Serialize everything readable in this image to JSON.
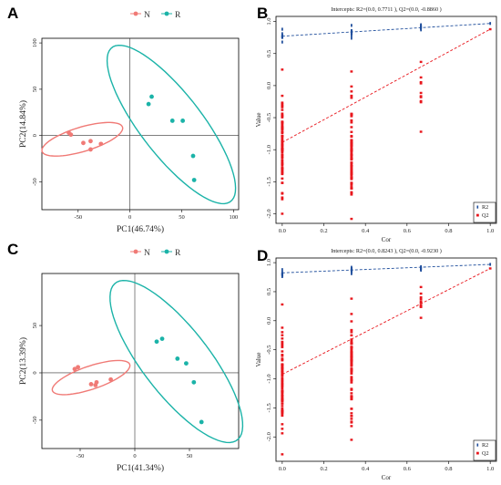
{
  "colors": {
    "N": "#f07a76",
    "R": "#1bb3a8",
    "R2": "#1f4e9c",
    "Q2": "#e8161c"
  },
  "chart_data": [
    {
      "panel": "A",
      "type": "scatter",
      "xlabel": "PC1(46.74%)",
      "ylabel": "PC2(14.84%)",
      "xlim": [
        -85,
        105
      ],
      "ylim": [
        -80,
        105
      ],
      "xticks": [
        "-50",
        "0",
        "50",
        "100"
      ],
      "xtick_values": [
        -50,
        0,
        50,
        100
      ],
      "yticks": [
        "-50",
        "0",
        "50",
        "100"
      ],
      "ytick_values": [
        -50,
        0,
        50,
        100
      ],
      "legend": [
        {
          "name": "N"
        },
        {
          "name": "R"
        }
      ],
      "series": [
        {
          "name": "N",
          "points": [
            [
              -59,
              3
            ],
            [
              -57,
              1
            ],
            [
              -45,
              -8
            ],
            [
              -38,
              -15
            ],
            [
              -38,
              -6
            ],
            [
              -28,
              -9
            ]
          ],
          "ellipse": {
            "cx": -46,
            "cy": -4,
            "rx": 41,
            "ry": 13,
            "angle_deg": 19
          }
        },
        {
          "name": "R",
          "points": [
            [
              18,
              34
            ],
            [
              21,
              42
            ],
            [
              41,
              16
            ],
            [
              51,
              16
            ],
            [
              61,
              -22
            ],
            [
              62,
              -48
            ]
          ],
          "ellipse": {
            "cx": 40,
            "cy": 12,
            "rx": 101,
            "ry": 31,
            "angle_deg": -56
          }
        }
      ]
    },
    {
      "panel": "B",
      "type": "scatter",
      "title": "Intercepts: R2=(0.0, 0.7711 ), Q2=(0.0, -0.8860 )",
      "xlabel": "Cor",
      "ylabel": "Value",
      "xlim": [
        -0.03,
        1.03
      ],
      "ylim": [
        -2.15,
        1.08
      ],
      "xticks": [
        "0.0",
        "0.2",
        "0.4",
        "0.6",
        "0.8",
        "1.0"
      ],
      "xtick_values": [
        0,
        0.2,
        0.4,
        0.6,
        0.8,
        1.0
      ],
      "yticks": [
        "-2.0",
        "-1.5",
        "-1.0",
        "-0.5",
        "0.0",
        "0.5",
        "1.0"
      ],
      "ytick_values": [
        -2,
        -1.5,
        -1,
        -0.5,
        0,
        0.5,
        1
      ],
      "legend": [
        {
          "name": "R2"
        },
        {
          "name": "Q2"
        }
      ],
      "legend_position": "bottom-right",
      "series": [
        {
          "name": "R2",
          "x_groups": [
            0.0,
            0.333,
            0.667,
            1.0
          ],
          "y_ranges": [
            [
              0.68,
              0.88
            ],
            [
              0.74,
              0.94
            ],
            [
              0.87,
              0.95
            ],
            [
              0.97,
              0.97
            ]
          ],
          "regression": {
            "intercept": 0.7711,
            "end": [
              1.0,
              0.97
            ]
          }
        },
        {
          "name": "Q2",
          "x_groups": [
            0.0,
            0.333,
            0.667,
            1.0
          ],
          "y_ranges": [
            [
              -2.0,
              0.25
            ],
            [
              -2.08,
              0.22
            ],
            [
              -0.72,
              0.37
            ],
            [
              0.88,
              0.88
            ]
          ],
          "regression": {
            "intercept": -0.886,
            "end": [
              1.0,
              0.88
            ]
          }
        }
      ]
    },
    {
      "panel": "C",
      "type": "scatter",
      "xlabel": "PC1(41.34%)",
      "ylabel": "PC2(13.39%)",
      "xlim": [
        -85,
        95
      ],
      "ylim": [
        -80,
        105
      ],
      "xticks": [
        "-50",
        "0",
        "50"
      ],
      "xtick_values": [
        -50,
        0,
        50
      ],
      "yticks": [
        "-50",
        "0",
        "50"
      ],
      "ytick_values": [
        -50,
        0,
        50
      ],
      "legend": [
        {
          "name": "N"
        },
        {
          "name": "R"
        }
      ],
      "series": [
        {
          "name": "N",
          "points": [
            [
              -55,
              4
            ],
            [
              -52,
              6
            ],
            [
              -40,
              -12
            ],
            [
              -36,
              -13
            ],
            [
              -35,
              -10
            ],
            [
              -22,
              -7
            ]
          ],
          "ellipse": {
            "cx": -40,
            "cy": -5,
            "rx": 38,
            "ry": 12,
            "angle_deg": 22
          }
        },
        {
          "name": "R",
          "points": [
            [
              20,
              33
            ],
            [
              25,
              36
            ],
            [
              39,
              15
            ],
            [
              47,
              10
            ],
            [
              54,
              -10
            ],
            [
              61,
              -52
            ]
          ],
          "ellipse": {
            "cx": 38,
            "cy": 12,
            "rx": 100,
            "ry": 32,
            "angle_deg": -57
          }
        }
      ]
    },
    {
      "panel": "D",
      "type": "scatter",
      "title": "Intercepts: R2=(0.0, 0.8243 ), Q2=(0.0, -0.9230 )",
      "xlabel": "Cor",
      "ylabel": "Value",
      "xlim": [
        -0.03,
        1.03
      ],
      "ylim": [
        -2.42,
        1.08
      ],
      "xticks": [
        "0.0",
        "0.2",
        "0.4",
        "0.6",
        "0.8",
        "1.0"
      ],
      "xtick_values": [
        0,
        0.2,
        0.4,
        0.6,
        0.8,
        1.0
      ],
      "yticks": [
        "-2.0",
        "-1.5",
        "-1.0",
        "-0.5",
        "0.0",
        "0.5",
        "1.0"
      ],
      "ytick_values": [
        -2,
        -1.5,
        -1,
        -0.5,
        0,
        0.5,
        1
      ],
      "legend": [
        {
          "name": "R2"
        },
        {
          "name": "Q2"
        }
      ],
      "legend_position": "bottom-right",
      "series": [
        {
          "name": "R2",
          "x_groups": [
            0.0,
            0.333,
            0.667,
            1.0
          ],
          "y_ranges": [
            [
              0.76,
              0.88
            ],
            [
              0.81,
              0.92
            ],
            [
              0.87,
              0.93
            ],
            [
              0.97,
              0.97
            ]
          ],
          "regression": {
            "intercept": 0.8243,
            "end": [
              1.0,
              0.97
            ]
          }
        },
        {
          "name": "Q2",
          "x_groups": [
            0.0,
            0.333,
            0.667,
            1.0
          ],
          "y_ranges": [
            [
              -2.3,
              0.28
            ],
            [
              -2.05,
              0.38
            ],
            [
              0.05,
              0.58
            ],
            [
              0.9,
              0.9
            ]
          ],
          "regression": {
            "intercept": -0.923,
            "end": [
              1.0,
              0.9
            ]
          }
        }
      ]
    }
  ]
}
